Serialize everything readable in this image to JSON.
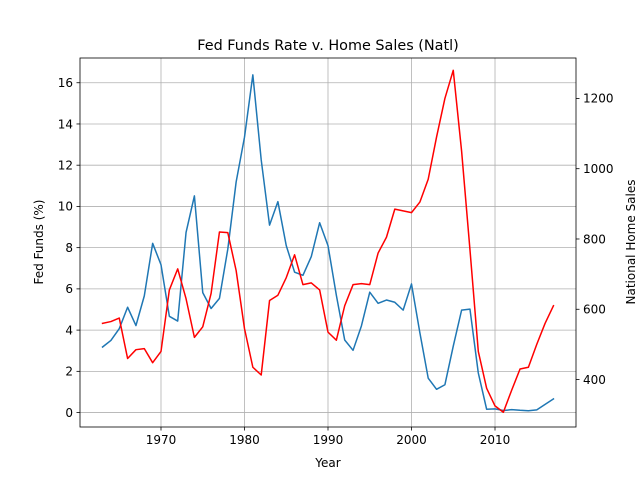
{
  "chart_data": {
    "type": "line",
    "title": "Fed Funds Rate v. Home Sales (Natl)",
    "xlabel": "Year",
    "ylabel": "Fed Funds (%)",
    "y2label": "National Home Sales",
    "xlim": [
      1960.3,
      2019.7
    ],
    "ylim": [
      -0.7,
      17.2
    ],
    "y2lim": [
      265,
      1315
    ],
    "xticks": [
      1970,
      1980,
      1990,
      2000,
      2010
    ],
    "yticks": [
      0,
      2,
      4,
      6,
      8,
      10,
      12,
      14,
      16
    ],
    "y2ticks": [
      400,
      600,
      800,
      1000,
      1200
    ],
    "grid": true,
    "series": [
      {
        "name": "Fed Funds",
        "axis": "left",
        "color": "#1f77b4",
        "x": [
          1963,
          1964,
          1965,
          1966,
          1967,
          1968,
          1969,
          1970,
          1971,
          1972,
          1973,
          1974,
          1975,
          1976,
          1977,
          1978,
          1979,
          1980,
          1981,
          1982,
          1983,
          1984,
          1985,
          1986,
          1987,
          1988,
          1989,
          1990,
          1991,
          1992,
          1993,
          1994,
          1995,
          1996,
          1997,
          1998,
          1999,
          2000,
          2001,
          2002,
          2003,
          2004,
          2005,
          2006,
          2007,
          2008,
          2009,
          2010,
          2011,
          2012,
          2013,
          2014,
          2015,
          2016,
          2017
        ],
        "y": [
          3.18,
          3.5,
          4.07,
          5.11,
          4.22,
          5.66,
          8.21,
          7.17,
          4.67,
          4.44,
          8.74,
          10.51,
          5.82,
          5.05,
          5.54,
          7.93,
          11.19,
          13.36,
          16.38,
          12.26,
          9.09,
          10.23,
          8.1,
          6.81,
          6.66,
          7.57,
          9.21,
          8.1,
          5.69,
          3.52,
          3.02,
          4.2,
          5.84,
          5.3,
          5.46,
          5.35,
          4.97,
          6.24,
          3.88,
          1.67,
          1.13,
          1.35,
          3.22,
          4.97,
          5.02,
          1.92,
          0.16,
          0.18,
          0.1,
          0.14,
          0.11,
          0.09,
          0.13,
          0.4,
          0.66
        ]
      },
      {
        "name": "Home Sales",
        "axis": "right",
        "color": "#ff0000",
        "x": [
          1963,
          1964,
          1965,
          1966,
          1967,
          1968,
          1969,
          1970,
          1971,
          1972,
          1973,
          1974,
          1975,
          1976,
          1977,
          1978,
          1979,
          1980,
          1981,
          1982,
          1983,
          1984,
          1985,
          1986,
          1987,
          1988,
          1989,
          1990,
          1991,
          1992,
          1993,
          1994,
          1995,
          1996,
          1997,
          1998,
          1999,
          2000,
          2001,
          2002,
          2003,
          2004,
          2005,
          2006,
          2007,
          2008,
          2009,
          2010,
          2011,
          2012,
          2013,
          2014,
          2015,
          2016,
          2017
        ],
        "y": [
          560,
          565,
          575,
          460,
          485,
          488,
          448,
          480,
          655,
          715,
          630,
          520,
          550,
          645,
          820,
          818,
          710,
          545,
          435,
          413,
          625,
          640,
          690,
          755,
          670,
          675,
          655,
          535,
          512,
          610,
          670,
          673,
          670,
          760,
          805,
          885,
          880,
          875,
          905,
          970,
          1090,
          1200,
          1280,
          1050,
          770,
          480,
          375,
          325,
          307,
          370,
          430,
          435,
          500,
          560,
          610
        ]
      }
    ]
  }
}
